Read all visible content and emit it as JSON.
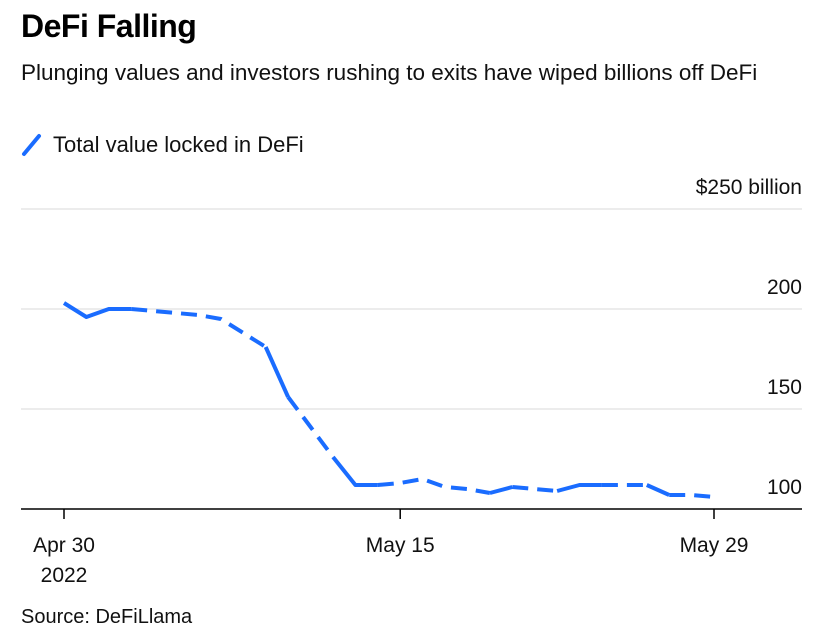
{
  "title": "DeFi Falling",
  "subtitle": "Plunging values and investors rushing to exits have wiped billions off DeFi",
  "source": "Source: DeFiLlama",
  "colors": {
    "series": "#1a6cff",
    "grid": "#e6e6e6",
    "axis": "#000000"
  },
  "legend": {
    "icon": "dashed-line-swatch"
  },
  "chart_data": {
    "type": "line",
    "ylabel": "$250 billion",
    "ylim": [
      100,
      250
    ],
    "yticks": [
      {
        "value": 250,
        "label": "$250 billion"
      },
      {
        "value": 200,
        "label": "200"
      },
      {
        "value": 150,
        "label": "150"
      },
      {
        "value": 100,
        "label": "100"
      }
    ],
    "xrange": [
      "2022-04-28",
      "2022-06-02"
    ],
    "xticks": [
      {
        "date": "2022-04-30",
        "label": "Apr 30",
        "sublabel": "2022"
      },
      {
        "date": "2022-05-15",
        "label": "May 15",
        "sublabel": ""
      },
      {
        "date": "2022-05-29",
        "label": "May 29",
        "sublabel": ""
      }
    ],
    "grid": true,
    "legend_position": "top-left",
    "series": [
      {
        "name": "Total value locked in DeFi",
        "points": [
          {
            "x": "2022-04-30",
            "y": 203
          },
          {
            "x": "2022-05-01",
            "y": 196
          },
          {
            "x": "2022-05-02",
            "y": 200
          },
          {
            "x": "2022-05-03",
            "y": 200
          },
          {
            "x": "2022-05-04",
            "y": 199
          },
          {
            "x": "2022-05-05",
            "y": 198
          },
          {
            "x": "2022-05-06",
            "y": 197
          },
          {
            "x": "2022-05-07",
            "y": 195
          },
          {
            "x": "2022-05-08",
            "y": 188
          },
          {
            "x": "2022-05-09",
            "y": 181
          },
          {
            "x": "2022-05-10",
            "y": 156
          },
          {
            "x": "2022-05-11",
            "y": 141
          },
          {
            "x": "2022-05-12",
            "y": 126
          },
          {
            "x": "2022-05-13",
            "y": 112
          },
          {
            "x": "2022-05-14",
            "y": 112
          },
          {
            "x": "2022-05-15",
            "y": 113
          },
          {
            "x": "2022-05-16",
            "y": 115
          },
          {
            "x": "2022-05-17",
            "y": 111
          },
          {
            "x": "2022-05-18",
            "y": 110
          },
          {
            "x": "2022-05-19",
            "y": 108
          },
          {
            "x": "2022-05-20",
            "y": 111
          },
          {
            "x": "2022-05-21",
            "y": 110
          },
          {
            "x": "2022-05-22",
            "y": 109
          },
          {
            "x": "2022-05-23",
            "y": 112
          },
          {
            "x": "2022-05-24",
            "y": 112
          },
          {
            "x": "2022-05-25",
            "y": 112
          },
          {
            "x": "2022-05-26",
            "y": 112
          },
          {
            "x": "2022-05-27",
            "y": 107
          },
          {
            "x": "2022-05-28",
            "y": 107
          },
          {
            "x": "2022-05-29",
            "y": 106
          }
        ],
        "dashed_segments": [
          [
            "2022-05-03",
            "2022-05-07"
          ],
          [
            "2022-05-07",
            "2022-05-09"
          ],
          [
            "2022-05-10",
            "2022-05-12"
          ],
          [
            "2022-05-14",
            "2022-05-16"
          ],
          [
            "2022-05-16",
            "2022-05-19"
          ],
          [
            "2022-05-20",
            "2022-05-22"
          ],
          [
            "2022-05-24",
            "2022-05-26"
          ],
          [
            "2022-05-27",
            "2022-05-29"
          ]
        ]
      }
    ]
  }
}
